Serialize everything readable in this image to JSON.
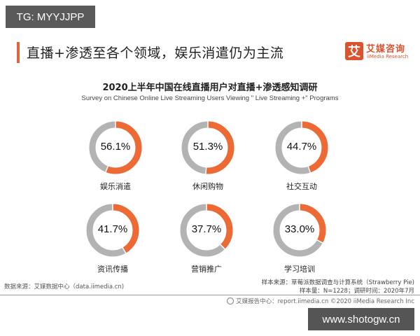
{
  "watermarks": {
    "top": "TG: MYYJJPP",
    "bottom": "www.shotogw.cn"
  },
  "header": {
    "title": "直播+渗透至各个领域，娱乐消遣仍为主流",
    "accent_color": "#e0643c"
  },
  "logo": {
    "glyph": "艾",
    "cn": "艾媒咨询",
    "en": "iiMedia Research",
    "color": "#d9532f"
  },
  "chart_data": {
    "type": "pie",
    "subtype": "donut-grid",
    "title": "2020上半年中国在线直播用户对直播+渗透感知调研",
    "subtitle": "Survey on Chinese Online Live Streaming Users Viewing \" Live Streaming +\" Programs",
    "unit": "%",
    "categories": [
      "娱乐消遣",
      "休闲购物",
      "社交互动",
      "资讯传播",
      "营销推广",
      "学习培训"
    ],
    "values": [
      56.1,
      51.3,
      44.7,
      41.7,
      37.7,
      33.0
    ],
    "value_labels": [
      "56.1%",
      "51.3%",
      "44.7%",
      "41.7%",
      "37.7%",
      "33.0%"
    ],
    "colors": {
      "filled": "#ee6a35",
      "remainder": "#b3b3b3"
    },
    "layout": {
      "rows": 2,
      "cols": 3
    },
    "legend": "none"
  },
  "footer": {
    "source": "数据来源：艾媒数据中心（data.iimedia.cn)",
    "sample_source": "样本来源：草莓派数据调查与计算系统（Strawberry Pie)",
    "sample_size": "样本量：N=1228；调研时间：2020年7月",
    "report": "艾媒报告中心：report.iimedia.cn   ©2020  iiMedia Research  Inc"
  }
}
